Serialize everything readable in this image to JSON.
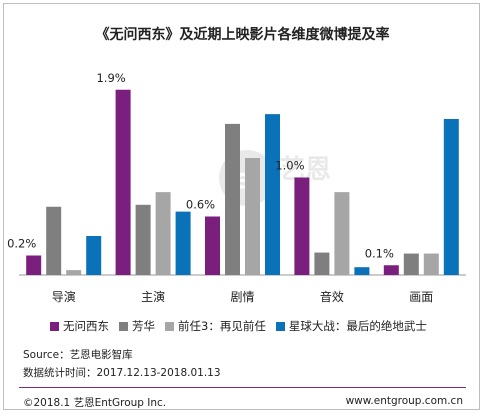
{
  "title": "《无问西东》及近期上映影片各维度微博提及率",
  "source": "Source：艺恩电影智库",
  "period": "数据统计时间：2017.12.13-2018.01.13",
  "copyright": "©2018.1 艺恩EntGroup Inc.",
  "website": "www.entgroup.com.cn",
  "watermark_text": "艺恩 entgroup",
  "chart_data": {
    "type": "bar",
    "title": "《无问西东》及近期上映影片各维度微博提及率",
    "xlabel": "",
    "ylabel": "",
    "grid": false,
    "legend_position": "bottom",
    "ylim": [
      0,
      2.0
    ],
    "categories": [
      "导演",
      "主演",
      "剧情",
      "音效",
      "画面"
    ],
    "series": [
      {
        "name": "无问西东",
        "color": "#7b1f7e",
        "values": [
          0.2,
          1.9,
          0.6,
          1.0,
          0.1
        ]
      },
      {
        "name": "芳华",
        "color": "#7f7f7f",
        "values": [
          0.7,
          0.72,
          1.55,
          0.23,
          0.22
        ]
      },
      {
        "name": "前任3：再见前任",
        "color": "#a6a6a6",
        "values": [
          0.05,
          0.85,
          1.2,
          0.85,
          0.22
        ]
      },
      {
        "name": "星球大战：最后的绝地武士",
        "color": "#0a72b8",
        "values": [
          0.4,
          0.65,
          1.65,
          0.08,
          1.6
        ]
      }
    ],
    "data_labels": [
      "0.2%",
      "1.9%",
      "0.6%",
      "1.0%",
      "0.1%"
    ]
  }
}
